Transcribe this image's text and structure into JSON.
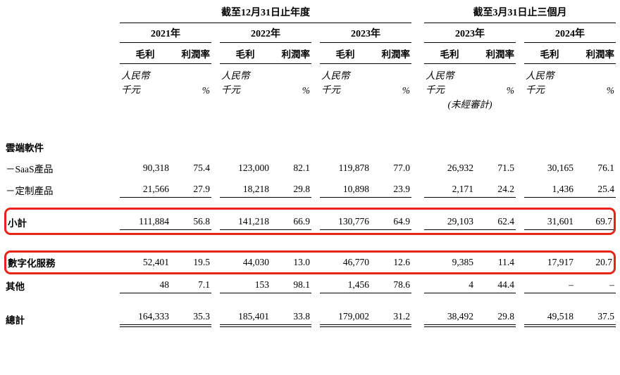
{
  "colors": {
    "highlight": "#e8231a",
    "line": "#000000"
  },
  "header": {
    "annual": "截至12月31日止年度",
    "quarter": "截至3月31日止三個月",
    "years": [
      "2021年",
      "2022年",
      "2023年",
      "2023年",
      "2024年"
    ],
    "gross": "毛利",
    "margin": "利潤率",
    "rmb": "人民幣",
    "thousand": "千元",
    "pct": "%",
    "unaudited": "(未經審計)"
  },
  "rows": {
    "cloud": {
      "label": "雲端軟件"
    },
    "saas": {
      "label": "－SaaS產品",
      "cells": [
        "90,318",
        "75.4",
        "123,000",
        "82.1",
        "119,878",
        "77.0",
        "26,932",
        "71.5",
        "30,165",
        "76.1"
      ]
    },
    "custom": {
      "label": "－定制產品",
      "cells": [
        "21,566",
        "27.9",
        "18,218",
        "29.8",
        "10,898",
        "23.9",
        "2,171",
        "24.2",
        "1,436",
        "25.4"
      ]
    },
    "subtotal": {
      "label": "小計",
      "cells": [
        "111,884",
        "56.8",
        "141,218",
        "66.9",
        "130,776",
        "64.9",
        "29,103",
        "62.4",
        "31,601",
        "69.7"
      ]
    },
    "digital": {
      "label": "數字化服務",
      "cells": [
        "52,401",
        "19.5",
        "44,030",
        "13.0",
        "46,770",
        "12.6",
        "9,385",
        "11.4",
        "17,917",
        "20.7"
      ]
    },
    "other": {
      "label": "其他",
      "cells": [
        "48",
        "7.1",
        "153",
        "98.1",
        "1,456",
        "78.6",
        "4",
        "44.4",
        "–",
        "–"
      ]
    },
    "total": {
      "label": "總計",
      "cells": [
        "164,333",
        "35.3",
        "185,401",
        "33.8",
        "179,002",
        "31.2",
        "38,492",
        "29.8",
        "49,518",
        "37.5"
      ]
    }
  }
}
